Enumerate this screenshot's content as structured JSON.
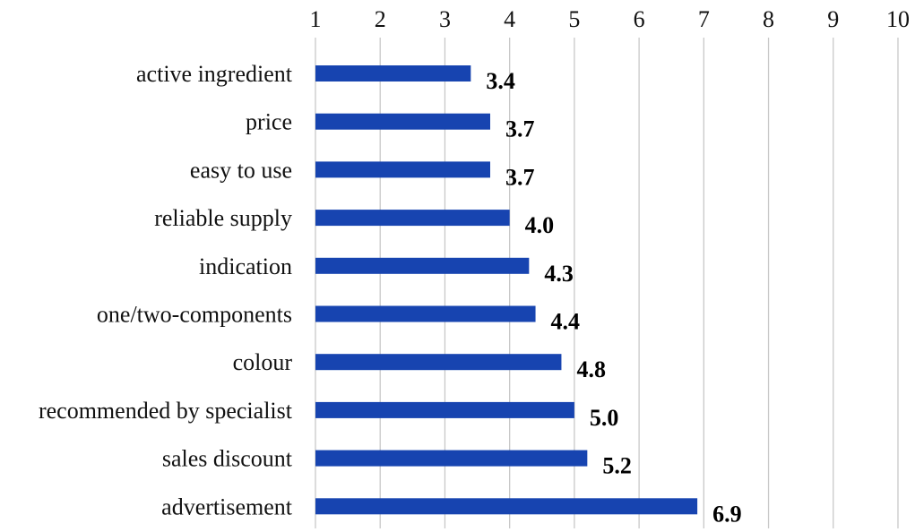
{
  "chart_data": {
    "type": "bar",
    "orientation": "horizontal",
    "categories": [
      "active ingredient",
      "price",
      "easy to use",
      "reliable supply",
      "indication",
      "one/two-components",
      "colour",
      "recommended by specialist",
      "sales discount",
      "advertisement"
    ],
    "values": [
      3.4,
      3.7,
      3.7,
      4.0,
      4.3,
      4.4,
      4.8,
      5.0,
      5.2,
      6.9
    ],
    "data_labels": [
      "3.4",
      "3.7",
      "3.7",
      "4.0",
      "4.3",
      "4.4",
      "4.8",
      "5.0",
      "5.2",
      "6.9"
    ],
    "x_ticks": [
      "1",
      "2",
      "3",
      "4",
      "5",
      "6",
      "7",
      "8",
      "9",
      "10"
    ],
    "xlim": [
      1,
      10
    ],
    "x_axis_position": "top",
    "grid": true,
    "legend": "none",
    "bar_color": "#1744b0",
    "gridline_color": "#c8c8c8",
    "title": "",
    "xlabel": "",
    "ylabel": ""
  }
}
